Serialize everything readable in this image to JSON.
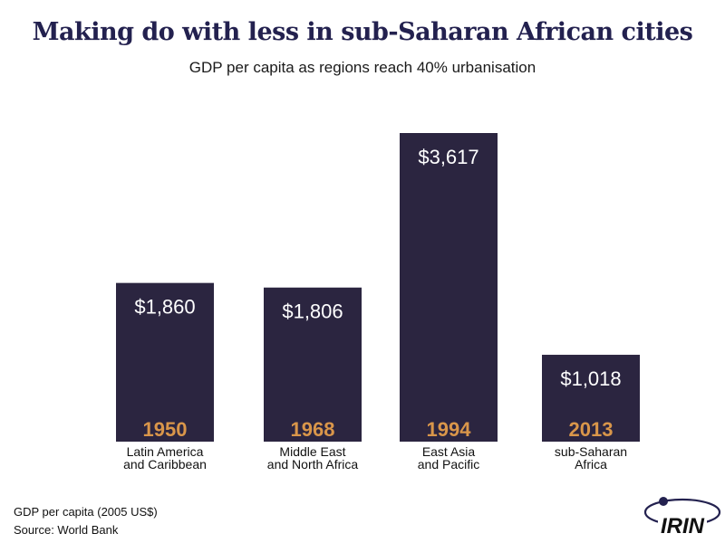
{
  "chart_data": {
    "type": "bar",
    "title": "Making do with less in sub-Saharan African cities",
    "subtitle": "GDP per capita as regions reach 40% urbanisation",
    "categories": [
      "Latin America and Caribbean",
      "Middle East and North Africa",
      "East Asia and Pacific",
      "sub-Saharan Africa"
    ],
    "category_lines": [
      [
        "Latin America",
        "and Caribbean"
      ],
      [
        "Middle East",
        "and North Africa"
      ],
      [
        "East Asia",
        "and Pacific"
      ],
      [
        "sub-Saharan",
        "Africa"
      ]
    ],
    "years": [
      "1950",
      "1968",
      "1994",
      "2013"
    ],
    "values": [
      1860,
      1806,
      3617,
      1018
    ],
    "value_labels": [
      "$1,860",
      "$1,806",
      "$3,617",
      "$1,018"
    ],
    "xlabel": "",
    "ylabel": "GDP per capita (2005 US$)",
    "ylim": [
      0,
      3617
    ],
    "grid": false,
    "colors": {
      "bar": "#2b2540",
      "value_text": "#ffffff",
      "year_text": "#d9964a",
      "title": "#23214f"
    }
  },
  "footer": {
    "unit_note": "GDP per capita (2005 US$)",
    "source": "Source: World Bank"
  },
  "logo": {
    "text": "IRIN"
  }
}
